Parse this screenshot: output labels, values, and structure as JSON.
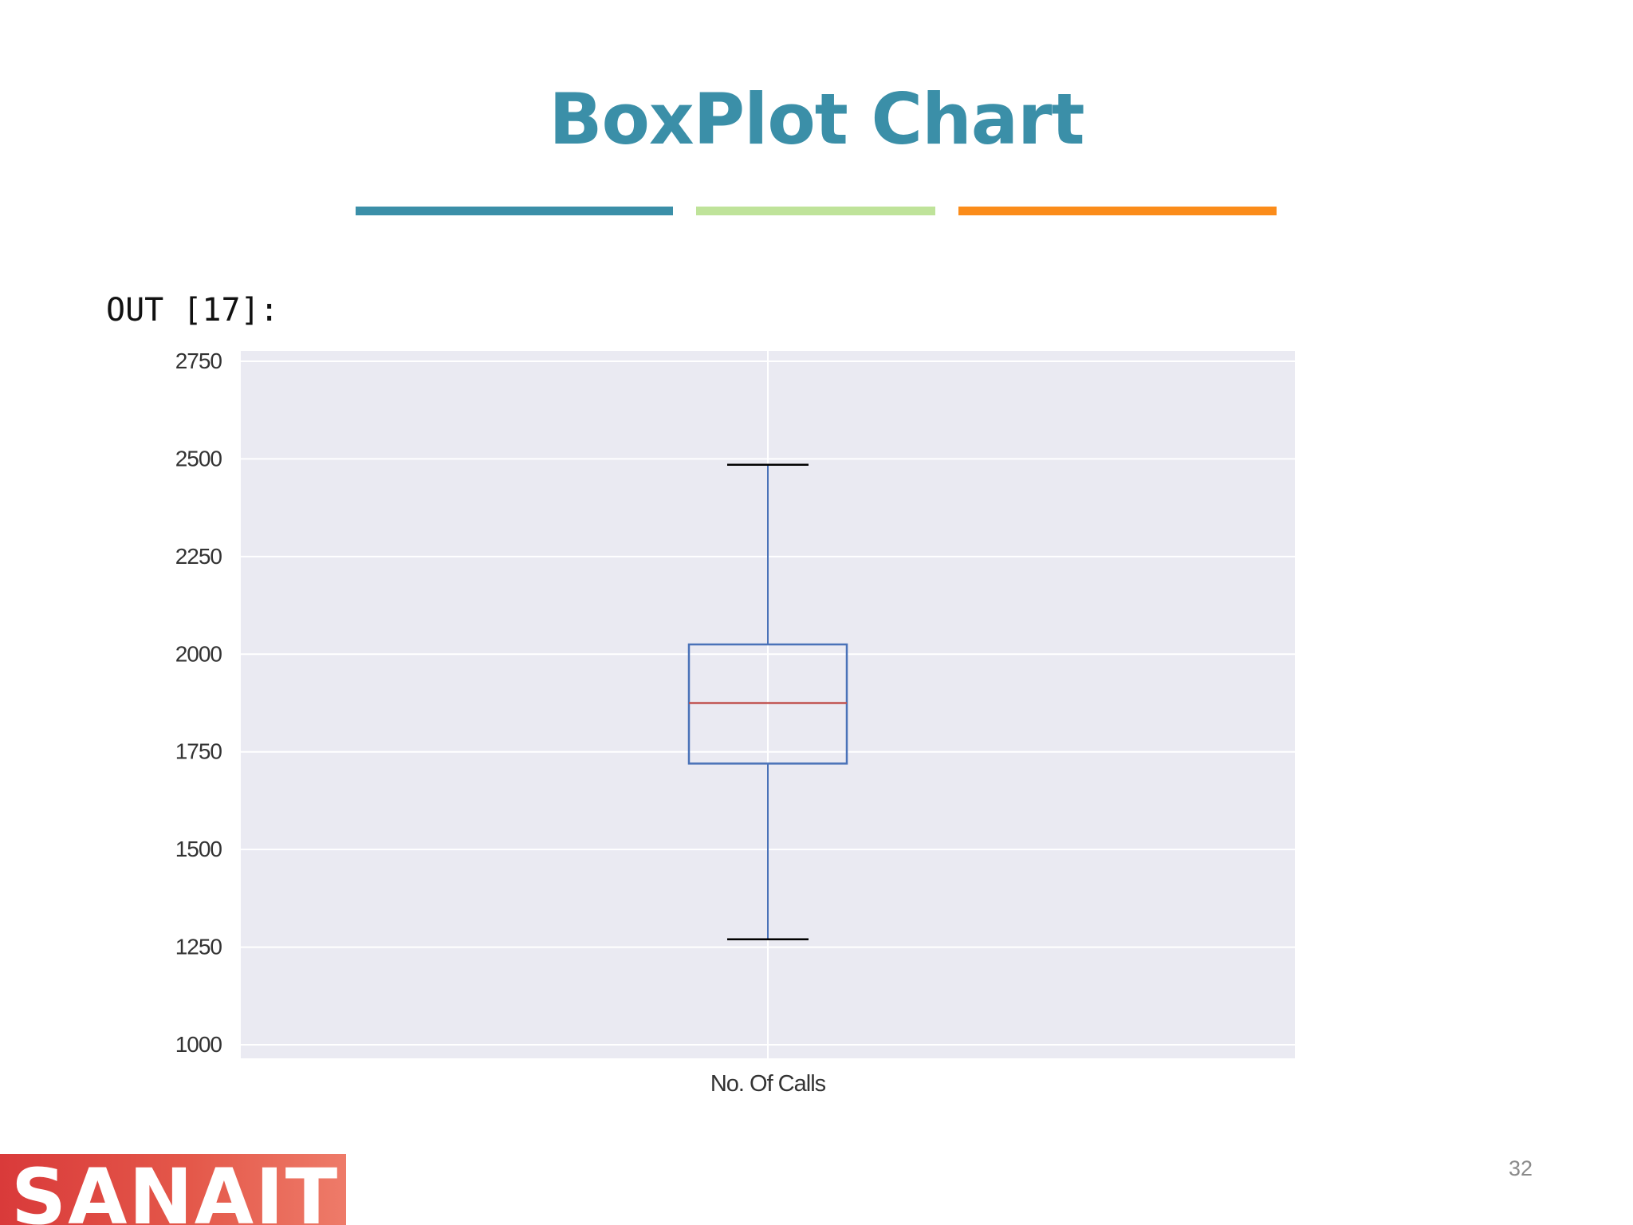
{
  "slide": {
    "title": "BoxPlot Chart",
    "out_label": "OUT [17]:",
    "page_number": "32",
    "logo_text": "SANAITICS"
  },
  "colors": {
    "title": "#3b8fa8",
    "divider_1": "#3b8fa8",
    "divider_2": "#bfe39a",
    "divider_3": "#fb8c1a",
    "plot_background": "#eaeaf2",
    "grid": "#ffffff",
    "box": "#4a72b8",
    "median": "#c0504d",
    "caps": "#000000"
  },
  "chart_data": {
    "type": "box",
    "categories": [
      "No. Of Calls"
    ],
    "series": [
      {
        "whisker_low": 1270,
        "q1": 1720,
        "median": 1875,
        "q3": 2025,
        "whisker_high": 2485
      }
    ],
    "title": "",
    "xlabel": "",
    "ylabel": "",
    "ylim": [
      1000,
      2750
    ],
    "yticks": [
      1000,
      1250,
      1500,
      1750,
      2000,
      2250,
      2500,
      2750
    ],
    "grid": true,
    "legend": "none"
  }
}
